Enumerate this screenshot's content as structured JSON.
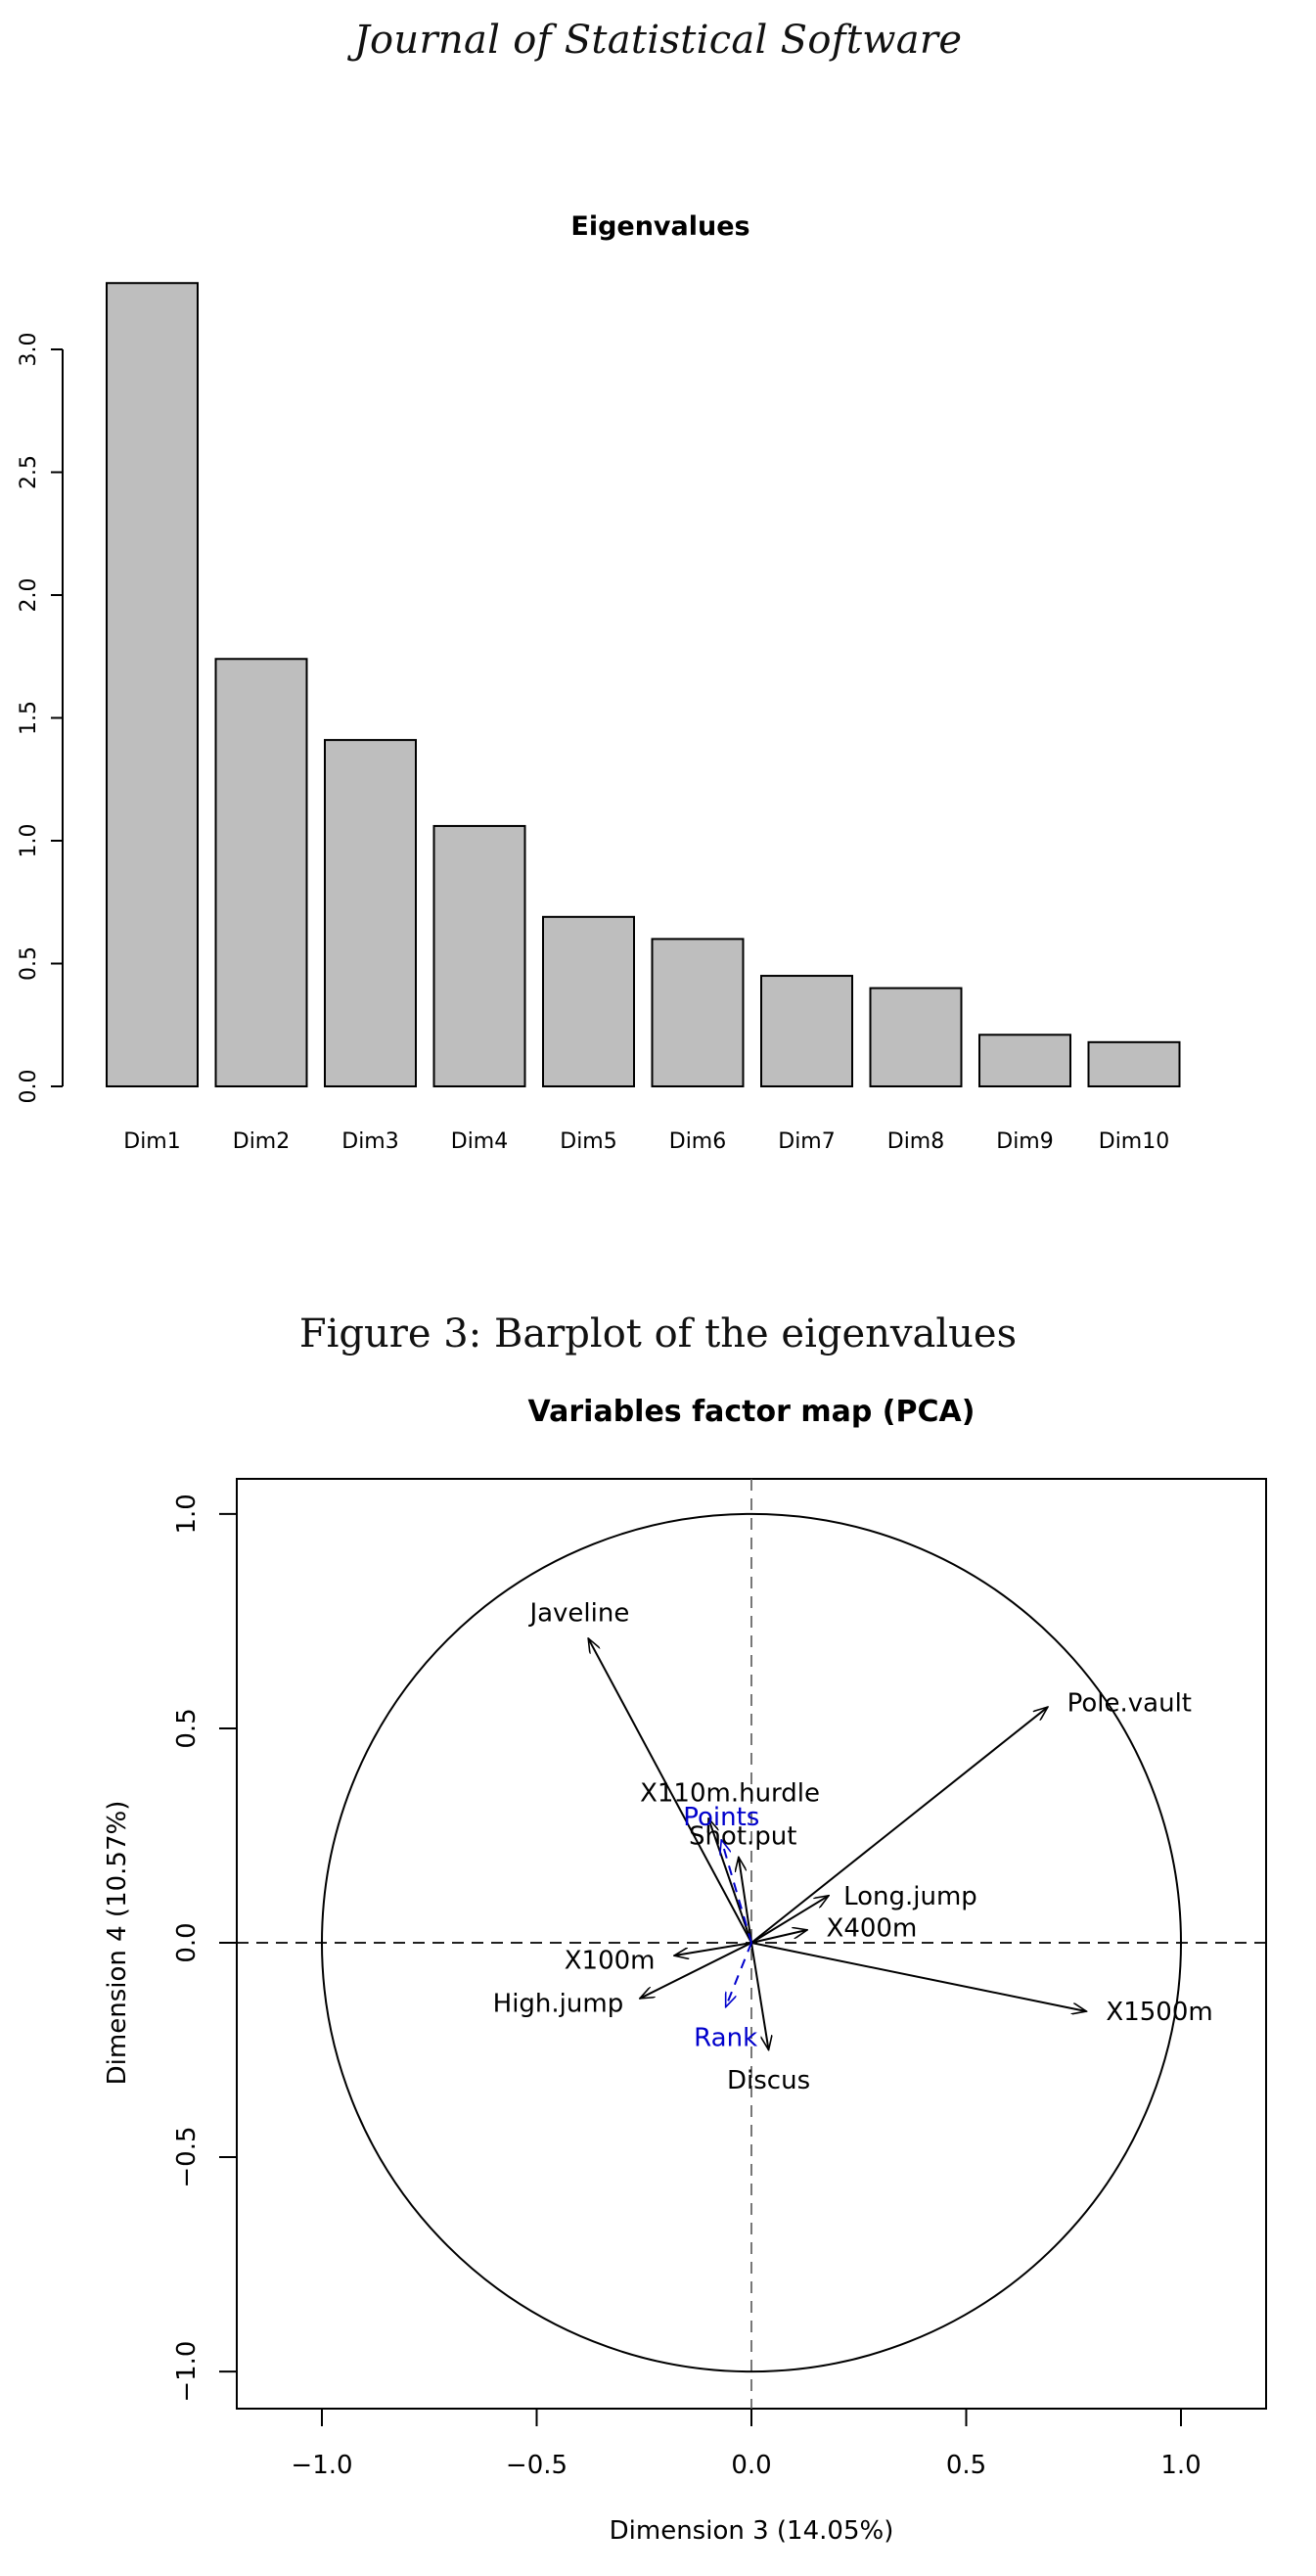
{
  "page": {
    "header": "Journal of Statistical Software",
    "caption": "Figure 3: Barplot of the eigenvalues"
  },
  "chart_data": [
    {
      "type": "bar",
      "title": "Eigenvalues",
      "xlabel": "",
      "ylabel": "",
      "categories": [
        "Dim1",
        "Dim2",
        "Dim3",
        "Dim4",
        "Dim5",
        "Dim6",
        "Dim7",
        "Dim8",
        "Dim9",
        "Dim10"
      ],
      "values": [
        3.27,
        1.74,
        1.41,
        1.06,
        0.69,
        0.6,
        0.45,
        0.4,
        0.21,
        0.18
      ],
      "yticks": [
        "0.0",
        "0.5",
        "1.0",
        "1.5",
        "2.0",
        "2.5",
        "3.0"
      ],
      "ylim": [
        0,
        3.27
      ],
      "grid": false,
      "bar_color": "#bebebe"
    },
    {
      "type": "scatter",
      "subtype": "variables-factor-map",
      "title": "Variables factor map (PCA)",
      "xlabel": "Dimension 3 (14.05%)",
      "ylabel": "Dimension 4 (10.57%)",
      "xlim": [
        -1.2,
        1.2
      ],
      "ylim": [
        -1.08,
        1.08
      ],
      "xticks": [
        "-1.0",
        "-0.5",
        "0.0",
        "0.5",
        "1.0"
      ],
      "yticks": [
        "-1.0",
        "-0.5",
        "0.0",
        "0.5",
        "1.0"
      ],
      "unit_circle": true,
      "active_color": "#000000",
      "supplementary_color": "#0000cc",
      "variables": [
        {
          "name": "Javeline",
          "x": -0.38,
          "y": 0.71,
          "supplementary": false
        },
        {
          "name": "Pole.vault",
          "x": 0.69,
          "y": 0.55,
          "supplementary": false
        },
        {
          "name": "X110m.hurdle",
          "x": -0.1,
          "y": 0.29,
          "supplementary": false
        },
        {
          "name": "Shot.put",
          "x": -0.03,
          "y": 0.2,
          "supplementary": false
        },
        {
          "name": "Long.jump",
          "x": 0.18,
          "y": 0.11,
          "supplementary": false
        },
        {
          "name": "X400m",
          "x": 0.13,
          "y": 0.03,
          "supplementary": false
        },
        {
          "name": "X100m",
          "x": -0.18,
          "y": -0.03,
          "supplementary": false
        },
        {
          "name": "High.jump",
          "x": -0.26,
          "y": -0.13,
          "supplementary": false
        },
        {
          "name": "Discus",
          "x": 0.04,
          "y": -0.25,
          "supplementary": false
        },
        {
          "name": "X1500m",
          "x": 0.78,
          "y": -0.16,
          "supplementary": false
        },
        {
          "name": "Points",
          "x": -0.07,
          "y": 0.24,
          "supplementary": true
        },
        {
          "name": "Rank",
          "x": -0.06,
          "y": -0.15,
          "supplementary": true
        }
      ]
    }
  ],
  "label_positions": {
    "Javeline": [
      -0.4,
      0.77
    ],
    "Pole.vault": [
      0.88,
      0.56
    ],
    "X110m.hurdle": [
      -0.05,
      0.35
    ],
    "Shot.put": [
      -0.02,
      0.25
    ],
    "Long.jump": [
      0.37,
      0.11
    ],
    "X400m": [
      0.28,
      0.035
    ],
    "X100m": [
      -0.33,
      -0.04
    ],
    "High.jump": [
      -0.45,
      -0.14
    ],
    "Discus": [
      0.04,
      -0.32
    ],
    "X1500m": [
      0.95,
      -0.16
    ],
    "Points": [
      -0.07,
      0.295
    ],
    "Rank": [
      -0.06,
      -0.22
    ]
  }
}
